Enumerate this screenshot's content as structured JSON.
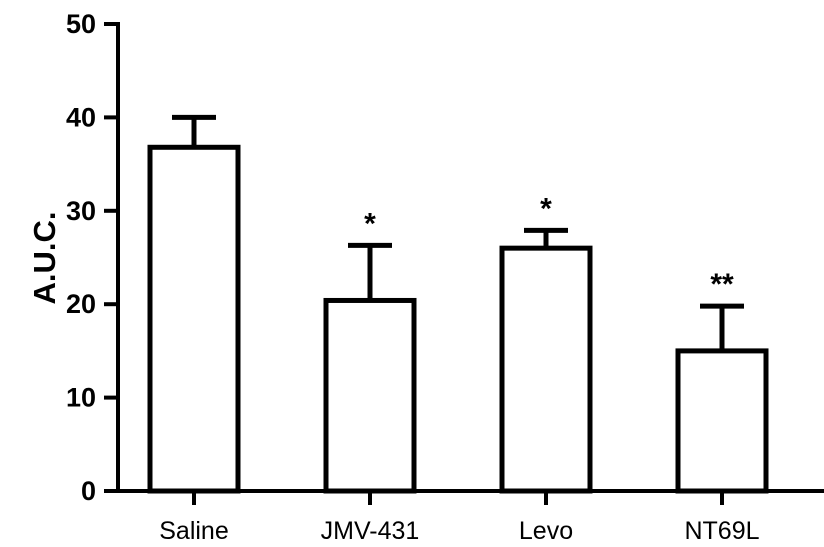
{
  "chart_data": {
    "type": "bar",
    "categories": [
      "Saline",
      "JMV-431",
      "Levo",
      "NT69L"
    ],
    "values": [
      36.8,
      20.4,
      26.0,
      15.0
    ],
    "errors": [
      3.2,
      5.9,
      1.9,
      4.8
    ],
    "significance": [
      "",
      "*",
      "*",
      "**"
    ],
    "ylabel": "A.U.C.",
    "ylim": [
      0,
      50
    ],
    "yticks": [
      0,
      10,
      20,
      30,
      40,
      50
    ],
    "grid": false,
    "colors": {
      "bar_fill": "#ffffff",
      "stroke": "#000000"
    }
  }
}
